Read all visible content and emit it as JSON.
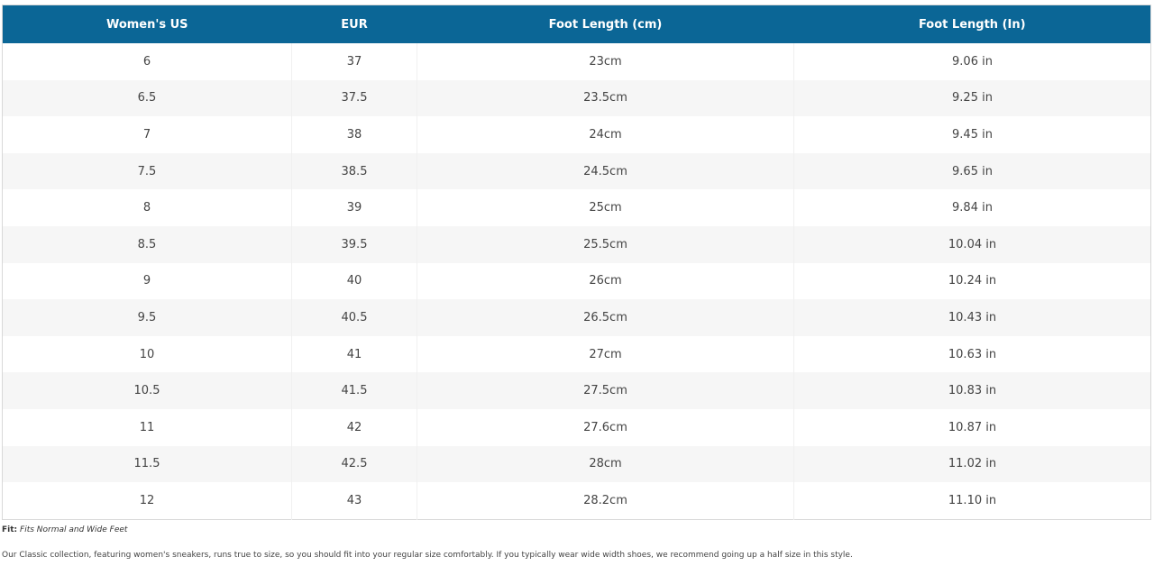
{
  "table": {
    "headers": [
      "Women's US",
      "EUR",
      "Foot Length (cm)",
      "Foot Length (In)"
    ],
    "rows": [
      [
        "6",
        "37",
        "23cm",
        "9.06 in"
      ],
      [
        "6.5",
        "37.5",
        "23.5cm",
        "9.25 in"
      ],
      [
        "7",
        "38",
        "24cm",
        "9.45 in"
      ],
      [
        "7.5",
        "38.5",
        "24.5cm",
        "9.65 in"
      ],
      [
        "8",
        "39",
        "25cm",
        "9.84 in"
      ],
      [
        "8.5",
        "39.5",
        "25.5cm",
        "10.04 in"
      ],
      [
        "9",
        "40",
        "26cm",
        "10.24 in"
      ],
      [
        "9.5",
        "40.5",
        "26.5cm",
        "10.43 in"
      ],
      [
        "10",
        "41",
        "27cm",
        "10.63 in"
      ],
      [
        "10.5",
        "41.5",
        "27.5cm",
        "10.83 in"
      ],
      [
        "11",
        "42",
        "27.6cm",
        "10.87 in"
      ],
      [
        "11.5",
        "42.5",
        "28cm",
        "11.02 in"
      ],
      [
        "12",
        "43",
        "28.2cm",
        "11.10 in"
      ]
    ]
  },
  "fit": {
    "label": "Fit:",
    "text": "Fits Normal and Wide Feet"
  },
  "description": "Our Classic collection, featuring women's sneakers, runs true to size, so you should fit into your regular size comfortably. If you typically wear wide width shoes, we recommend going up a half size in this style."
}
